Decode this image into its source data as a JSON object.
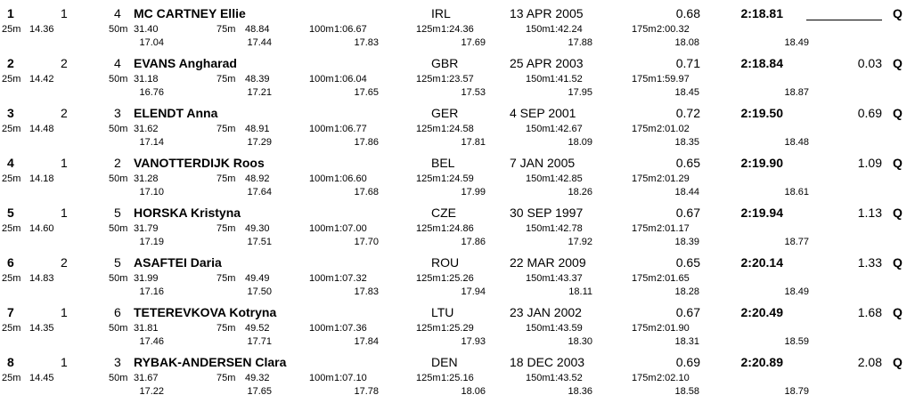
{
  "split_labels": [
    "25m",
    "50m",
    "75m",
    "100m",
    "125m",
    "150m",
    "175m"
  ],
  "rows": [
    {
      "rank": 1,
      "heat": 1,
      "lane": 4,
      "name": "MC CARTNEY Ellie",
      "nat": "IRL",
      "dob": "13 APR 2005",
      "rt": "0.68",
      "time": "2:18.81",
      "q": "Q",
      "splits": [
        "14.36",
        "31.40",
        "48.84",
        "1:06.67",
        "1:24.36",
        "1:42.24",
        "2:00.32"
      ],
      "laps": [
        "17.04",
        "17.44",
        "17.83",
        "17.69",
        "17.88",
        "18.08",
        "18.49"
      ]
    },
    {
      "rank": 2,
      "heat": 2,
      "lane": 4,
      "name": "EVANS Angharad",
      "nat": "GBR",
      "dob": "25 APR 2003",
      "rt": "0.71",
      "time": "2:18.84",
      "behind": "0.03",
      "q": "Q",
      "splits": [
        "14.42",
        "31.18",
        "48.39",
        "1:06.04",
        "1:23.57",
        "1:41.52",
        "1:59.97"
      ],
      "laps": [
        "16.76",
        "17.21",
        "17.65",
        "17.53",
        "17.95",
        "18.45",
        "18.87"
      ]
    },
    {
      "rank": 3,
      "heat": 2,
      "lane": 3,
      "name": "ELENDT Anna",
      "nat": "GER",
      "dob": "4 SEP 2001",
      "rt": "0.72",
      "time": "2:19.50",
      "behind": "0.69",
      "q": "Q",
      "splits": [
        "14.48",
        "31.62",
        "48.91",
        "1:06.77",
        "1:24.58",
        "1:42.67",
        "2:01.02"
      ],
      "laps": [
        "17.14",
        "17.29",
        "17.86",
        "17.81",
        "18.09",
        "18.35",
        "18.48"
      ]
    },
    {
      "rank": 4,
      "heat": 1,
      "lane": 2,
      "name": "VANOTTERDIJK Roos",
      "nat": "BEL",
      "dob": "7 JAN 2005",
      "rt": "0.65",
      "time": "2:19.90",
      "behind": "1.09",
      "q": "Q",
      "splits": [
        "14.18",
        "31.28",
        "48.92",
        "1:06.60",
        "1:24.59",
        "1:42.85",
        "2:01.29"
      ],
      "laps": [
        "17.10",
        "17.64",
        "17.68",
        "17.99",
        "18.26",
        "18.44",
        "18.61"
      ]
    },
    {
      "rank": 5,
      "heat": 1,
      "lane": 5,
      "name": "HORSKA Kristyna",
      "nat": "CZE",
      "dob": "30 SEP 1997",
      "rt": "0.67",
      "time": "2:19.94",
      "behind": "1.13",
      "q": "Q",
      "splits": [
        "14.60",
        "31.79",
        "49.30",
        "1:07.00",
        "1:24.86",
        "1:42.78",
        "2:01.17"
      ],
      "laps": [
        "17.19",
        "17.51",
        "17.70",
        "17.86",
        "17.92",
        "18.39",
        "18.77"
      ]
    },
    {
      "rank": 6,
      "heat": 2,
      "lane": 5,
      "name": "ASAFTEI Daria",
      "nat": "ROU",
      "dob": "22 MAR 2009",
      "rt": "0.65",
      "time": "2:20.14",
      "behind": "1.33",
      "q": "Q",
      "splits": [
        "14.83",
        "31.99",
        "49.49",
        "1:07.32",
        "1:25.26",
        "1:43.37",
        "2:01.65"
      ],
      "laps": [
        "17.16",
        "17.50",
        "17.83",
        "17.94",
        "18.11",
        "18.28",
        "18.49"
      ]
    },
    {
      "rank": 7,
      "heat": 1,
      "lane": 6,
      "name": "TETEREVKOVA Kotryna",
      "nat": "LTU",
      "dob": "23 JAN 2002",
      "rt": "0.67",
      "time": "2:20.49",
      "behind": "1.68",
      "q": "Q",
      "splits": [
        "14.35",
        "31.81",
        "49.52",
        "1:07.36",
        "1:25.29",
        "1:43.59",
        "2:01.90"
      ],
      "laps": [
        "17.46",
        "17.71",
        "17.84",
        "17.93",
        "18.30",
        "18.31",
        "18.59"
      ]
    },
    {
      "rank": 8,
      "heat": 1,
      "lane": 3,
      "name": "RYBAK-ANDERSEN Clara",
      "nat": "DEN",
      "dob": "18 DEC 2003",
      "rt": "0.69",
      "time": "2:20.89",
      "behind": "2.08",
      "q": "Q",
      "splits": [
        "14.45",
        "31.67",
        "49.32",
        "1:07.10",
        "1:25.16",
        "1:43.52",
        "2:02.10"
      ],
      "laps": [
        "17.22",
        "17.65",
        "17.78",
        "18.06",
        "18.36",
        "18.58",
        "18.79"
      ]
    }
  ]
}
